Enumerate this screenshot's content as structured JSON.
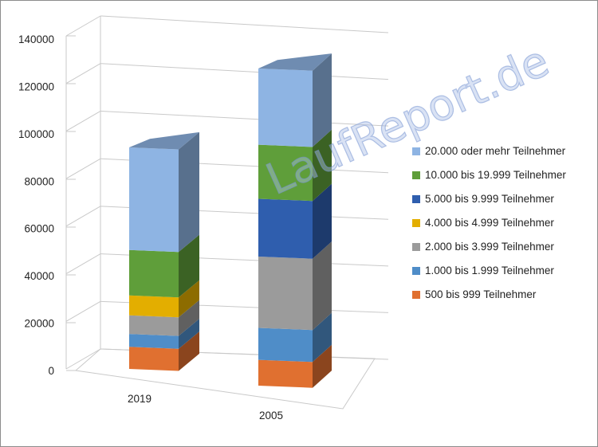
{
  "watermark": "LaufReport.de",
  "chart_data": {
    "type": "bar",
    "stacked": true,
    "three_d": true,
    "categories": [
      "2019",
      "2005"
    ],
    "y_ticks": [
      "0",
      "20000",
      "40000",
      "60000",
      "80000",
      "100000",
      "120000",
      "140000"
    ],
    "ylim": [
      0,
      140000
    ],
    "grid": true,
    "legend_position": "right",
    "series": [
      {
        "name": "500 bis 999 Teilnehmer",
        "color": "#E07030",
        "values": [
          9500,
          10500
        ]
      },
      {
        "name": "1.000 bis 1.999 Teilnehmer",
        "color": "#4F8DC8",
        "values": [
          5500,
          13000
        ]
      },
      {
        "name": "2.000 bis 3.999 Teilnehmer",
        "color": "#9B9B9B",
        "values": [
          8000,
          29000
        ]
      },
      {
        "name": "4.000 bis 4.999 Teilnehmer",
        "color": "#E3AE00",
        "values": [
          8500,
          0
        ]
      },
      {
        "name": "5.000 bis 9.999 Teilnehmer",
        "color": "#2F5EAE",
        "values": [
          0,
          23500
        ]
      },
      {
        "name": "10.000 bis 19.999 Teilnehmer",
        "color": "#5F9E3A",
        "values": [
          19500,
          22000
        ]
      },
      {
        "name": "20.000 oder mehr Teilnehmer",
        "color": "#8EB4E3",
        "values": [
          44000,
          31000
        ]
      }
    ]
  }
}
